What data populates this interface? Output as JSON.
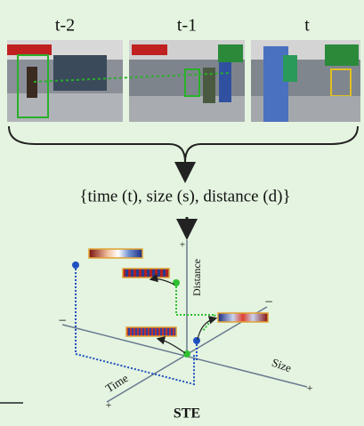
{
  "frames": [
    {
      "label": "t-2"
    },
    {
      "label": "t-1"
    },
    {
      "label": "t"
    }
  ],
  "features": "{time (t), size (s), distance (d)}",
  "axes": {
    "distance": "Distance",
    "size": "Size",
    "time": "Time",
    "plus": "+",
    "minus": "−"
  },
  "title": "STE"
}
